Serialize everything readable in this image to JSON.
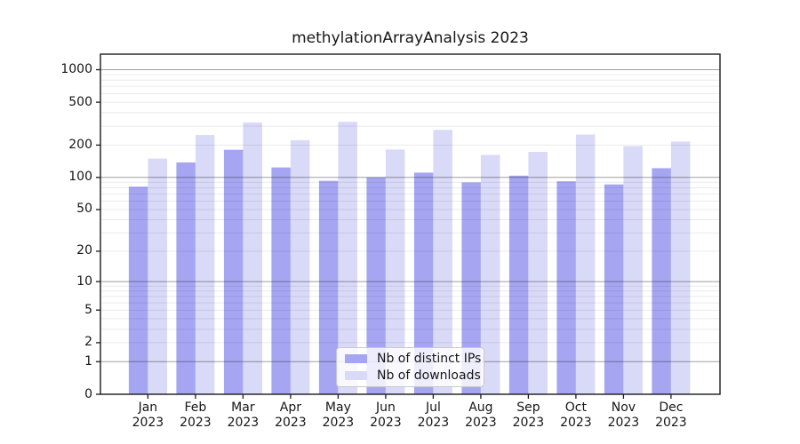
{
  "title": "methylationArrayAnalysis 2023",
  "colors": {
    "distinct_ips_bar": "#a5a5f2",
    "downloads_bar": "#d9d9f8",
    "major_gridline": "rgba(40,40,40,0.45)",
    "minor_gridline": "rgba(0,0,0,0.08)",
    "axis_spine": "#1a1a1a",
    "legend_border": "#c9c9c9"
  },
  "legend": {
    "items": [
      {
        "label": "Nb of distinct IPs",
        "color_key": "distinct_ips_bar"
      },
      {
        "label": "Nb of downloads",
        "color_key": "downloads_bar"
      }
    ]
  },
  "chart_data": {
    "type": "bar",
    "title": "methylationArrayAnalysis 2023",
    "xlabel": "",
    "ylabel": "",
    "y_scale": "log1p",
    "ylim": [
      0,
      1000
    ],
    "grid": "on",
    "legend_position": "bottom-center-inside",
    "year": "2023",
    "months": [
      "Jan",
      "Feb",
      "Mar",
      "Apr",
      "May",
      "Jun",
      "Jul",
      "Aug",
      "Sep",
      "Oct",
      "Nov",
      "Dec"
    ],
    "categories": [
      "Jan 2023",
      "Feb 2023",
      "Mar 2023",
      "Apr 2023",
      "May 2023",
      "Jun 2023",
      "Jul 2023",
      "Aug 2023",
      "Sep 2023",
      "Oct 2023",
      "Nov 2023",
      "Dec 2023"
    ],
    "series": [
      {
        "name": "Nb of distinct IPs",
        "values": [
          82,
          138,
          181,
          124,
          93,
          100,
          111,
          90,
          104,
          92,
          86,
          122
        ]
      },
      {
        "name": "Nb of downloads",
        "values": [
          150,
          248,
          325,
          222,
          329,
          182,
          277,
          162,
          173,
          251,
          196,
          216
        ]
      }
    ],
    "y_ticks": [
      1000,
      500,
      200,
      100,
      50,
      20,
      10,
      5,
      2,
      1,
      0
    ],
    "y_ticks_order": "top-to-bottom"
  }
}
